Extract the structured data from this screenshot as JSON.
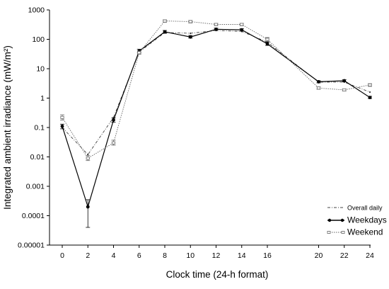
{
  "chart_data": {
    "type": "line",
    "xlabel": "Clock time (24-h format)",
    "ylabel": "Integrated ambient irradiance (mW/m²)",
    "y_scale": "log",
    "ylim": [
      1e-05,
      1000
    ],
    "xlim": [
      0,
      24
    ],
    "grid": false,
    "legend_position": "bottom-right",
    "x_ticks": [
      0,
      2,
      4,
      6,
      8,
      10,
      12,
      14,
      16,
      20,
      22,
      24
    ],
    "y_ticks": [
      1e-05,
      0.0001,
      0.001,
      0.01,
      0.1,
      1,
      10,
      100,
      1000
    ],
    "y_tick_labels": [
      "0.00001",
      "0.0001",
      "0.001",
      "0.01",
      "0.1",
      "1",
      "10",
      "100",
      "1000"
    ],
    "series": [
      {
        "name": "Overall daily",
        "style": "dash-dot",
        "color": "#444444",
        "x": [
          0,
          2,
          4,
          6,
          8,
          10,
          12,
          14,
          16,
          20,
          22,
          24
        ],
        "y": [
          0.1,
          0.012,
          0.22,
          37,
          170,
          160,
          200,
          185,
          80,
          3.5,
          3.5,
          1.6
        ]
      },
      {
        "name": "Weekdays",
        "style": "solid",
        "color": "#000000",
        "x": [
          0,
          2,
          4,
          6,
          8,
          10,
          12,
          14,
          16,
          20,
          22,
          24
        ],
        "y": [
          0.11,
          0.0002,
          0.18,
          40,
          180,
          120,
          220,
          210,
          70,
          3.6,
          3.9,
          1.05
        ],
        "err_low": [
          0.09,
          4e-05,
          0.15,
          35,
          160,
          110,
          200,
          190,
          62,
          3.3,
          3.6,
          0.97
        ],
        "err_high": [
          0.13,
          0.00035,
          0.21,
          46,
          200,
          135,
          240,
          230,
          80,
          3.9,
          4.2,
          1.15
        ]
      },
      {
        "name": "Weekend",
        "style": "dotted",
        "color": "#666666",
        "x": [
          0,
          2,
          4,
          6,
          8,
          10,
          12,
          14,
          16,
          20,
          22,
          24
        ],
        "y": [
          0.22,
          0.009,
          0.03,
          35,
          420,
          400,
          320,
          320,
          100,
          2.2,
          1.9,
          2.8
        ],
        "err_low": [
          0.18,
          0.0075,
          0.025,
          31,
          380,
          360,
          290,
          290,
          85,
          2.0,
          1.75,
          2.5
        ],
        "err_high": [
          0.27,
          0.011,
          0.037,
          40,
          460,
          440,
          350,
          350,
          115,
          2.4,
          2.05,
          3.1
        ]
      }
    ]
  }
}
